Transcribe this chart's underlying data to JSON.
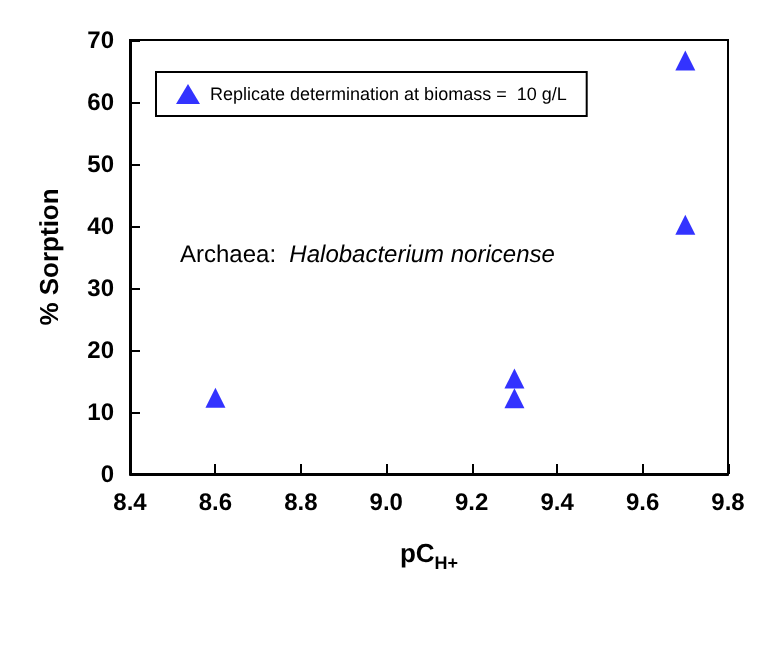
{
  "chart_data": {
    "type": "scatter",
    "xlabel": "pC$_{H+}$",
    "ylabel": "% Sorption",
    "annotations": [
      "Archaea:  Halobacterium noricense"
    ],
    "series": [
      {
        "name": "Replicate determination at biomass =  10 g/L",
        "color": "#0000ff",
        "x": [
          8.6,
          9.3,
          9.3,
          9.7,
          9.7
        ],
        "values": [
          12.3,
          15.4,
          12.2,
          66.7,
          40.2
        ]
      }
    ],
    "xlim": [
      8.4,
      9.8
    ],
    "xticks": [
      8.4,
      8.6,
      8.8,
      {
        "value": 9,
        "label": "9.0"
      },
      9.2,
      9.4,
      9.6,
      9.8
    ],
    "ylim": [
      0,
      70
    ],
    "yticks": [
      0,
      10,
      20,
      30,
      40,
      50,
      60,
      70
    ],
    "grid": false,
    "legend": "top left",
    "marker": "triangle"
  }
}
